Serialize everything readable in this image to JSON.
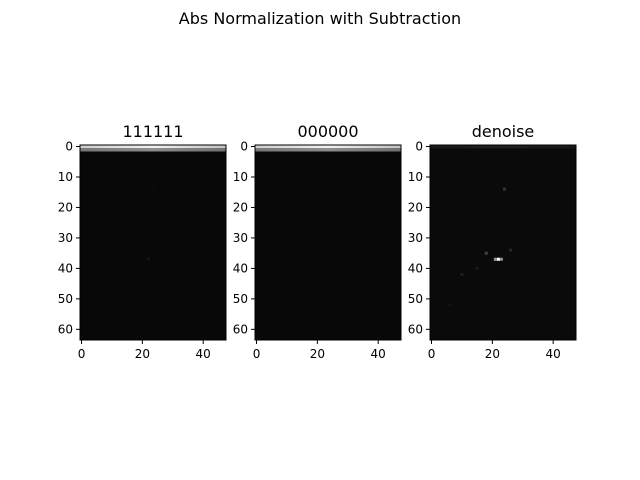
{
  "figure": {
    "title": "Abs Normalization with Subtraction"
  },
  "chart_data": [
    {
      "type": "heatmap",
      "title": "111111",
      "colormap": "gray",
      "xlim": [
        0,
        47
      ],
      "ylim": [
        63,
        0
      ],
      "xticks": [
        0,
        20,
        40
      ],
      "yticks": [
        0,
        10,
        20,
        30,
        40,
        50,
        60
      ],
      "bright_rows": [
        {
          "row": 0,
          "value": 0.95
        },
        {
          "row": 1,
          "value": 0.55
        }
      ],
      "faint_spots": [
        {
          "x": 22,
          "y": 37,
          "value": 0.08
        },
        {
          "x": 24,
          "y": 14,
          "value": 0.05
        }
      ],
      "background_value": 0.03
    },
    {
      "type": "heatmap",
      "title": "000000",
      "colormap": "gray",
      "xlim": [
        0,
        47
      ],
      "ylim": [
        63,
        0
      ],
      "xticks": [
        0,
        20,
        40
      ],
      "yticks": [
        0,
        10,
        20,
        30,
        40,
        50,
        60
      ],
      "bright_rows": [
        {
          "row": 0,
          "value": 0.95
        },
        {
          "row": 1,
          "value": 0.55
        }
      ],
      "faint_spots": [
        {
          "x": 24,
          "y": 14,
          "value": 0.04
        }
      ],
      "background_value": 0.03
    },
    {
      "type": "heatmap",
      "title": "denoise",
      "colormap": "gray",
      "xlim": [
        0,
        47
      ],
      "ylim": [
        63,
        0
      ],
      "xticks": [
        0,
        20,
        40
      ],
      "yticks": [
        0,
        10,
        20,
        30,
        40,
        50,
        60
      ],
      "bright_rows": [
        {
          "row": 0,
          "value": 0.12
        }
      ],
      "faint_spots": [
        {
          "x": 22,
          "y": 37,
          "value": 1.0
        },
        {
          "x": 21,
          "y": 37,
          "value": 0.6
        },
        {
          "x": 23,
          "y": 37,
          "value": 0.55
        },
        {
          "x": 18,
          "y": 35,
          "value": 0.25
        },
        {
          "x": 24,
          "y": 14,
          "value": 0.2
        },
        {
          "x": 10,
          "y": 42,
          "value": 0.12
        },
        {
          "x": 15,
          "y": 40,
          "value": 0.1
        },
        {
          "x": 6,
          "y": 52,
          "value": 0.08
        },
        {
          "x": 26,
          "y": 34,
          "value": 0.15
        }
      ],
      "background_value": 0.04
    }
  ]
}
